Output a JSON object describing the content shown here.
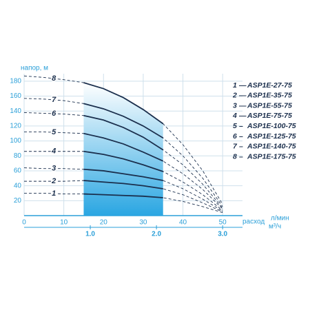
{
  "chart_data": {
    "type": "line",
    "ylabel": "напор, м",
    "xlabel": "расход",
    "xunit": "л/мин",
    "x2unit": "м³/ч",
    "x": [
      0,
      5,
      10,
      15,
      20,
      25,
      30,
      35,
      40,
      45,
      50
    ],
    "xlim": [
      0,
      55
    ],
    "xticks": [
      0,
      10,
      20,
      30,
      40,
      50
    ],
    "ylim": [
      0,
      190
    ],
    "yticks": [
      20,
      40,
      60,
      80,
      100,
      120,
      140,
      160,
      180
    ],
    "x2lim": [
      0,
      3.3
    ],
    "x2ticks": [
      {
        "value": 1,
        "label": "1.0"
      },
      {
        "value": 2,
        "label": "2.0"
      },
      {
        "value": 3,
        "label": "3.0"
      }
    ],
    "grid": true,
    "working_range": [
      15,
      35
    ],
    "curve_color": "#1b2f4d",
    "series": [
      {
        "id": "1",
        "sep": "—",
        "name": "ASP1E-27-75",
        "values": [
          30,
          30,
          29,
          29,
          28,
          27,
          26,
          24,
          19,
          12,
          4
        ]
      },
      {
        "id": "2",
        "sep": "—",
        "name": "ASP1E-35-75",
        "values": [
          46,
          46,
          46,
          47,
          45,
          43,
          40,
          36,
          28,
          17,
          5
        ]
      },
      {
        "id": "3",
        "sep": "—",
        "name": "ASP1E-55-75",
        "values": [
          64,
          63,
          63,
          62,
          60,
          56,
          52,
          47,
          36,
          22,
          6
        ]
      },
      {
        "id": "4",
        "sep": "—",
        "name": "ASP1E-75-75",
        "values": [
          86,
          86,
          86,
          86,
          82,
          76,
          68,
          59,
          45,
          28,
          7
        ]
      },
      {
        "id": "5",
        "sep": "–",
        "name": "ASP1E-100-75",
        "values": [
          112,
          112,
          111,
          110,
          104,
          96,
          85,
          73,
          56,
          35,
          9
        ]
      },
      {
        "id": "6",
        "sep": "–",
        "name": "ASP1E-125-75",
        "values": [
          138,
          137,
          136,
          134,
          128,
          118,
          105,
          88,
          68,
          42,
          10
        ]
      },
      {
        "id": "7",
        "sep": "–",
        "name": "ASP1E-140-75",
        "values": [
          157,
          156,
          154,
          150,
          143,
          133,
          120,
          104,
          80,
          50,
          12
        ]
      },
      {
        "id": "8",
        "sep": "–",
        "name": "ASP1E-175-75",
        "values": [
          187,
          185,
          182,
          178,
          170,
          158,
          142,
          123,
          95,
          60,
          15
        ]
      }
    ]
  }
}
